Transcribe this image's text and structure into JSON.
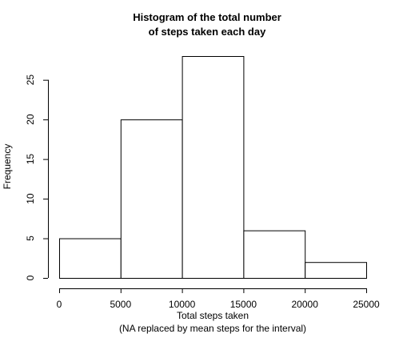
{
  "chart_data": {
    "type": "bar",
    "title_line1": "Histogram of the total number",
    "title_line2": "of steps taken each day",
    "xlabel": "Total steps taken",
    "xsublabel": "(NA replaced by mean steps for the interval)",
    "ylabel": "Frequency",
    "bins": [
      {
        "start": 0,
        "end": 5000,
        "count": 5
      },
      {
        "start": 5000,
        "end": 10000,
        "count": 20
      },
      {
        "start": 10000,
        "end": 15000,
        "count": 28
      },
      {
        "start": 15000,
        "end": 20000,
        "count": 6
      },
      {
        "start": 20000,
        "end": 25000,
        "count": 2
      }
    ],
    "xlim": [
      0,
      25000
    ],
    "ylim": [
      0,
      28
    ],
    "xticks": [
      0,
      5000,
      10000,
      15000,
      20000,
      25000
    ],
    "yticks": [
      0,
      5,
      10,
      15,
      20,
      25
    ],
    "grid": false,
    "bar_fill": "#ffffff",
    "bar_stroke": "#000000"
  }
}
